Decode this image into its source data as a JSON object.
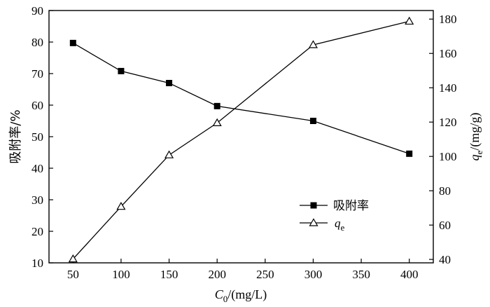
{
  "chart_data": {
    "type": "line",
    "x": [
      50,
      100,
      150,
      200,
      300,
      400
    ],
    "xlabel": {
      "main": "C",
      "sub": "0",
      "unit": "/(mg/L)"
    },
    "xlim": [
      25,
      425
    ],
    "xticks": [
      50,
      100,
      150,
      200,
      250,
      300,
      350,
      400
    ],
    "ylabel_left": "吸附率/%",
    "ylim_left": [
      10,
      90
    ],
    "yticks_left": [
      10,
      20,
      30,
      40,
      50,
      60,
      70,
      80,
      90
    ],
    "ylabel_right": {
      "main": "q",
      "sub": "e",
      "unit": "/(mg/g)"
    },
    "ylim_right": [
      38,
      185
    ],
    "yticks_right": [
      40,
      60,
      80,
      100,
      120,
      140,
      160,
      180
    ],
    "grid": false,
    "legend_position": "bottom-right",
    "series": [
      {
        "name": "吸附率",
        "axis": "left",
        "marker": "filled-square",
        "color": "#000000",
        "values": [
          79.7,
          70.8,
          67.0,
          59.7,
          55.0,
          44.6
        ]
      },
      {
        "name": {
          "main": "q",
          "sub": "e"
        },
        "axis": "right",
        "marker": "open-triangle",
        "color": "#000000",
        "values": [
          40.2,
          70.8,
          100.8,
          119.5,
          165.0,
          178.7
        ]
      }
    ]
  }
}
